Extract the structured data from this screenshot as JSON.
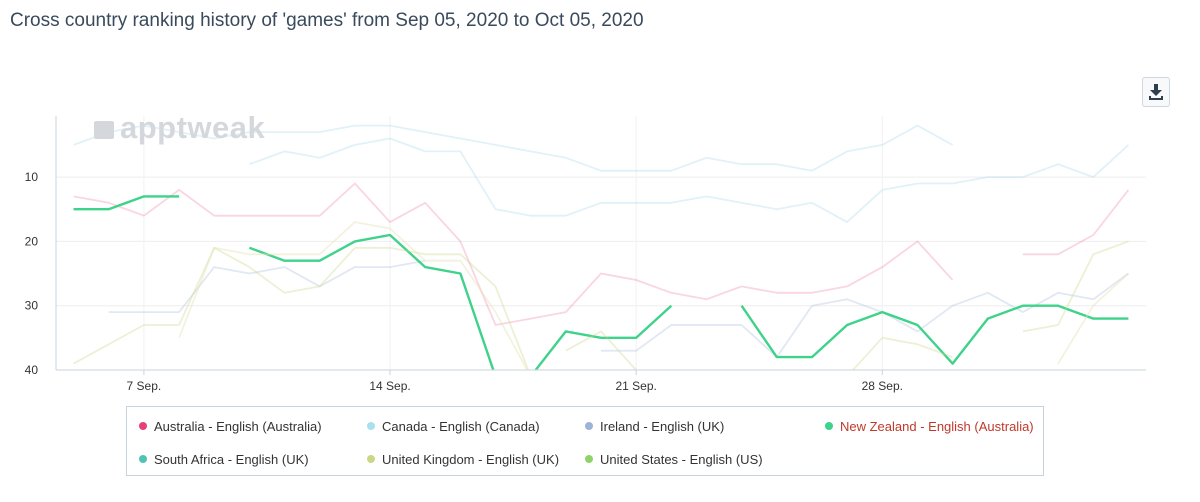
{
  "title": "Cross country ranking history of 'games' from Sep 05, 2020 to Oct 05, 2020",
  "watermark": "apptweak",
  "icons": {
    "download": "download-icon",
    "watermark": "chart-logo-icon"
  },
  "chart_data": {
    "type": "line",
    "title": "Cross country ranking history of 'games' from Sep 05, 2020 to Oct 05, 2020",
    "xlabel": "",
    "ylabel": "",
    "x_range": [
      4.5,
      35.5
    ],
    "y_range": [
      0.5,
      40
    ],
    "y_inverted": true,
    "y_ticks": [
      10,
      20,
      30,
      40
    ],
    "x_ticks": [
      {
        "day": 7,
        "label": "7 Sep."
      },
      {
        "day": 14,
        "label": "14 Sep."
      },
      {
        "day": 21,
        "label": "21 Sep."
      },
      {
        "day": 28,
        "label": "28 Sep."
      }
    ],
    "legend_position": "bottom",
    "grid": true,
    "series": [
      {
        "name": "Australia - English (Australia)",
        "color": "#e8407a",
        "opacity": 0.22,
        "points": [
          [
            5,
            13
          ],
          [
            6,
            14
          ],
          [
            7,
            16
          ],
          [
            8,
            12
          ],
          [
            9,
            16
          ],
          [
            10,
            16
          ],
          [
            11,
            16
          ],
          [
            12,
            16
          ],
          [
            13,
            11
          ],
          [
            14,
            17
          ],
          [
            15,
            14
          ],
          [
            16,
            20
          ],
          [
            17,
            33
          ],
          [
            18,
            32
          ],
          [
            19,
            31
          ],
          [
            20,
            25
          ],
          [
            21,
            26
          ],
          [
            22,
            28
          ],
          [
            23,
            29
          ],
          [
            24,
            27
          ],
          [
            25,
            28
          ],
          [
            26,
            28
          ],
          [
            27,
            27
          ],
          [
            28,
            24
          ],
          [
            29,
            20
          ],
          [
            30,
            26
          ],
          null,
          [
            32,
            22
          ],
          [
            33,
            22
          ],
          [
            34,
            19
          ],
          [
            35,
            12
          ]
        ]
      },
      {
        "name": "Canada - English (Canada)",
        "color": "#a9d8ec",
        "opacity": 0.35,
        "points": [
          [
            5,
            5
          ],
          [
            6,
            3
          ],
          [
            7,
            2
          ],
          [
            8,
            3
          ],
          [
            9,
            4
          ],
          [
            10,
            3
          ],
          [
            11,
            3
          ],
          [
            12,
            3
          ],
          [
            13,
            2
          ],
          [
            14,
            2
          ],
          [
            15,
            3
          ],
          [
            16,
            4
          ],
          [
            17,
            5
          ],
          [
            18,
            6
          ],
          [
            19,
            7
          ],
          [
            20,
            9
          ],
          [
            21,
            9
          ],
          [
            22,
            9
          ],
          [
            23,
            7
          ],
          [
            24,
            8
          ],
          [
            25,
            8
          ],
          [
            26,
            9
          ],
          [
            27,
            6
          ],
          [
            28,
            5
          ],
          [
            29,
            2
          ],
          [
            30,
            5
          ]
        ]
      },
      {
        "name": "Canada - English (Canada) 2",
        "color": "#a9d8ec",
        "opacity": 0.35,
        "points": [
          [
            10,
            8
          ],
          [
            11,
            6
          ],
          [
            12,
            7
          ],
          [
            13,
            5
          ],
          [
            14,
            4
          ],
          [
            15,
            6
          ],
          [
            16,
            6
          ],
          [
            17,
            15
          ],
          [
            18,
            16
          ],
          [
            19,
            16
          ],
          [
            20,
            14
          ],
          [
            21,
            14
          ],
          [
            22,
            14
          ],
          [
            23,
            13
          ],
          [
            24,
            14
          ],
          [
            25,
            15
          ],
          [
            26,
            14
          ],
          [
            27,
            17
          ],
          [
            28,
            12
          ],
          [
            29,
            11
          ],
          [
            30,
            11
          ],
          [
            31,
            10
          ],
          [
            32,
            10
          ],
          [
            33,
            8
          ],
          [
            34,
            10
          ],
          [
            35,
            5
          ]
        ]
      },
      {
        "name": "Ireland - English (UK)",
        "color": "#9db3d8",
        "opacity": 0.3,
        "points": [
          [
            6,
            31
          ],
          [
            7,
            31
          ],
          [
            8,
            31
          ],
          [
            9,
            24
          ],
          [
            10,
            25
          ],
          [
            11,
            24
          ],
          [
            12,
            27
          ],
          [
            13,
            24
          ],
          [
            14,
            24
          ],
          [
            15,
            23
          ],
          null,
          [
            20,
            37
          ],
          [
            21,
            37
          ],
          [
            22,
            33
          ],
          [
            23,
            33
          ],
          [
            24,
            33
          ],
          [
            25,
            38
          ],
          [
            26,
            30
          ],
          [
            27,
            29
          ],
          [
            28,
            31
          ],
          [
            29,
            34
          ],
          [
            30,
            30
          ],
          [
            31,
            28
          ],
          [
            32,
            31
          ],
          [
            33,
            28
          ],
          [
            34,
            29
          ],
          [
            35,
            25
          ]
        ]
      },
      {
        "name": "New Zealand - English (Australia)",
        "color": "#3fd28a",
        "opacity": 1,
        "points": [
          [
            5,
            15
          ],
          [
            6,
            15
          ],
          [
            7,
            13
          ],
          [
            8,
            13
          ],
          null,
          [
            10,
            21
          ],
          [
            11,
            23
          ],
          [
            12,
            23
          ],
          [
            13,
            20
          ],
          [
            14,
            19
          ],
          [
            15,
            24
          ],
          [
            16,
            25
          ],
          [
            17,
            41
          ],
          null,
          [
            18,
            41
          ],
          [
            19,
            34
          ],
          [
            20,
            35
          ],
          [
            21,
            35
          ],
          [
            22,
            30
          ],
          null,
          [
            24,
            30
          ],
          [
            25,
            38
          ],
          [
            26,
            38
          ],
          [
            27,
            33
          ],
          [
            28,
            31
          ],
          [
            29,
            33
          ],
          [
            30,
            39
          ],
          [
            31,
            32
          ],
          [
            32,
            30
          ],
          [
            33,
            30
          ],
          [
            34,
            32
          ],
          [
            35,
            32
          ]
        ]
      },
      {
        "name": "South Africa - English (UK)",
        "color": "#4fc4b6",
        "opacity": 0.3,
        "points": []
      },
      {
        "name": "United Kingdom - English (UK)",
        "color": "#c9d886",
        "opacity": 0.35,
        "points": [
          [
            5,
            39
          ],
          [
            7,
            33
          ],
          [
            8,
            33
          ],
          [
            9,
            21
          ],
          [
            10,
            24
          ],
          [
            11,
            28
          ],
          [
            12,
            27
          ],
          [
            13,
            21
          ],
          [
            14,
            21
          ],
          [
            15,
            22
          ],
          [
            16,
            22
          ],
          [
            17,
            27
          ],
          [
            18,
            41
          ],
          null,
          [
            19,
            37
          ],
          [
            20,
            34
          ],
          [
            21,
            40
          ],
          null,
          [
            27,
            41
          ],
          [
            28,
            35
          ],
          [
            29,
            36
          ],
          [
            30,
            38
          ],
          null,
          [
            32,
            34
          ],
          [
            33,
            33
          ],
          [
            34,
            22
          ],
          [
            35,
            20
          ]
        ]
      },
      {
        "name": "United Kingdom - English (UK) 2",
        "color": "#e6e2b8",
        "opacity": 0.45,
        "points": [
          [
            8,
            35
          ],
          [
            9,
            21
          ],
          [
            10,
            22
          ],
          [
            11,
            22
          ],
          [
            12,
            22
          ],
          [
            13,
            17
          ],
          [
            14,
            18
          ],
          [
            15,
            23
          ],
          [
            16,
            23
          ],
          [
            17,
            31
          ],
          [
            18,
            41
          ],
          null,
          [
            33,
            39
          ],
          [
            34,
            30
          ],
          [
            35,
            25
          ]
        ]
      },
      {
        "name": "United States - English (US)",
        "color": "#8fd26a",
        "opacity": 0.3,
        "points": []
      }
    ]
  },
  "legend": {
    "items": [
      {
        "label": "Australia - English (Australia)",
        "color": "#e8407a",
        "active": false
      },
      {
        "label": "Canada - English (Canada)",
        "color": "#a9e0f0",
        "active": false
      },
      {
        "label": "Ireland - English (UK)",
        "color": "#9db3d8",
        "active": false
      },
      {
        "label": "New Zealand - English (Australia)",
        "color": "#3fd28a",
        "active": true
      },
      {
        "label": "South Africa - English (UK)",
        "color": "#4fc4b6",
        "active": false
      },
      {
        "label": "United Kingdom - English (UK)",
        "color": "#c9d886",
        "active": false
      },
      {
        "label": "United States - English (US)",
        "color": "#8fd26a",
        "active": false
      }
    ]
  }
}
